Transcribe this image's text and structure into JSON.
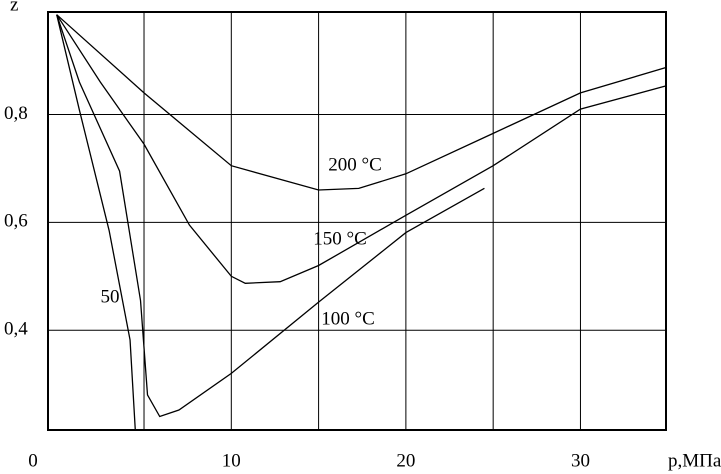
{
  "chart_data": {
    "type": "line",
    "ylabel": "z",
    "xlabel": "p,МПа",
    "xlim": [
      -0.5,
      34.9
    ],
    "ylim": [
      0.215,
      0.99
    ],
    "xticks": [
      0,
      10,
      20,
      30
    ],
    "xgrid": [
      5,
      10,
      15,
      20,
      25,
      30
    ],
    "yticks": [
      {
        "value": 0.4,
        "label": "0,4"
      },
      {
        "value": 0.6,
        "label": "0,6"
      },
      {
        "value": 0.8,
        "label": "0,8"
      }
    ],
    "grid": true,
    "series": [
      {
        "name": "200 °C",
        "color": "#000000",
        "x": [
          0,
          5,
          10,
          15,
          17.3,
          20,
          25,
          30,
          34.9
        ],
        "values": [
          0.985,
          0.84,
          0.705,
          0.66,
          0.663,
          0.69,
          0.765,
          0.84,
          0.887
        ]
      },
      {
        "name": "150 °C",
        "color": "#000000",
        "x": [
          0,
          2.5,
          5,
          7.6,
          10,
          10.8,
          12.8,
          15,
          20,
          25,
          30,
          34.9
        ],
        "values": [
          0.985,
          0.86,
          0.745,
          0.595,
          0.5,
          0.487,
          0.49,
          0.52,
          0.613,
          0.705,
          0.81,
          0.853
        ]
      },
      {
        "name": "100 °C",
        "color": "#000000",
        "x": [
          0,
          1.3,
          3.6,
          4.8,
          5.2,
          5.9,
          7.0,
          10,
          15,
          20,
          24.5
        ],
        "values": [
          0.985,
          0.86,
          0.695,
          0.455,
          0.28,
          0.24,
          0.252,
          0.32,
          0.452,
          0.581,
          0.663
        ]
      },
      {
        "name": "50",
        "color": "#000000",
        "x": [
          0,
          1.3,
          3.0,
          4.2,
          4.5
        ],
        "values": [
          0.985,
          0.808,
          0.585,
          0.382,
          0.215
        ]
      }
    ]
  }
}
